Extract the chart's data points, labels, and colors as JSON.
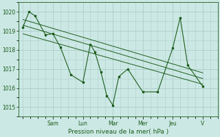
{
  "bg_color": "#cce8e4",
  "grid_color": "#aaccca",
  "line_color": "#1a5c1a",
  "xlabel": "Pression niveau de la mer( hPa )",
  "ylim": [
    1014.5,
    1020.5
  ],
  "yticks": [
    1015,
    1016,
    1017,
    1018,
    1019,
    1020
  ],
  "day_labels": [
    "Sam",
    "Lun",
    "Mar",
    "Mer",
    "Jeu",
    "V"
  ],
  "day_positions": [
    2.0,
    4.0,
    6.0,
    8.0,
    10.0,
    12.0
  ],
  "xlim": [
    -0.3,
    13.0
  ],
  "line1_x": [
    0.0,
    0.4,
    0.8,
    1.5,
    2.0,
    2.5,
    3.2,
    4.0,
    4.5,
    4.8,
    5.2,
    5.6,
    6.0,
    6.4,
    7.0,
    8.0,
    9.0,
    10.0,
    10.5,
    11.0,
    12.0
  ],
  "line1_y": [
    1019.2,
    1020.0,
    1019.8,
    1018.8,
    1018.85,
    1018.15,
    1016.7,
    1016.3,
    1018.3,
    1017.9,
    1016.85,
    1015.6,
    1015.1,
    1016.6,
    1017.0,
    1015.8,
    1015.8,
    1018.1,
    1019.7,
    1017.2,
    1016.1
  ],
  "trend1_x": [
    0.0,
    12.0
  ],
  "trend1_y": [
    1019.6,
    1016.8
  ],
  "trend2_x": [
    0.0,
    12.0
  ],
  "trend2_y": [
    1019.3,
    1016.5
  ],
  "trend3_x": [
    0.0,
    12.0
  ],
  "trend3_y": [
    1018.85,
    1016.2
  ]
}
